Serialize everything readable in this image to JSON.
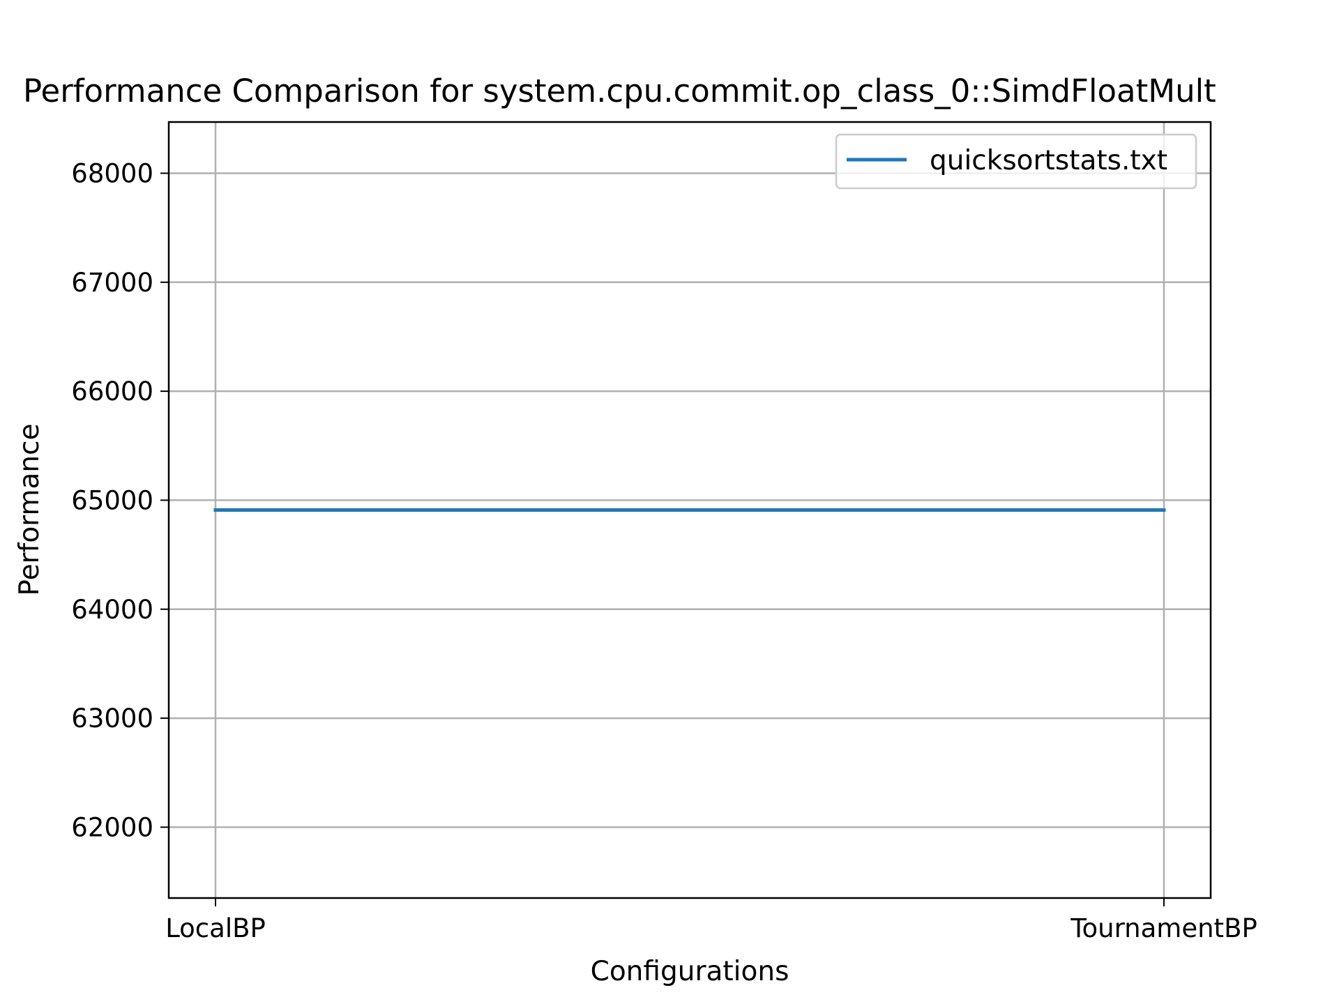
{
  "chart_data": {
    "type": "line",
    "title": "Performance Comparison for system.cpu.commit.op_class_0::SimdFloatMult",
    "xlabel": "Configurations",
    "ylabel": "Performance",
    "categories": [
      "LocalBP",
      "TournamentBP"
    ],
    "series": [
      {
        "name": "quicksortstats.txt",
        "values": [
          64910,
          64910
        ],
        "color": "#1f77b4"
      }
    ],
    "ylim": [
      61350,
      68470
    ],
    "yticks": [
      62000,
      63000,
      64000,
      65000,
      66000,
      67000,
      68000
    ],
    "grid": true,
    "legend": "top-right"
  }
}
